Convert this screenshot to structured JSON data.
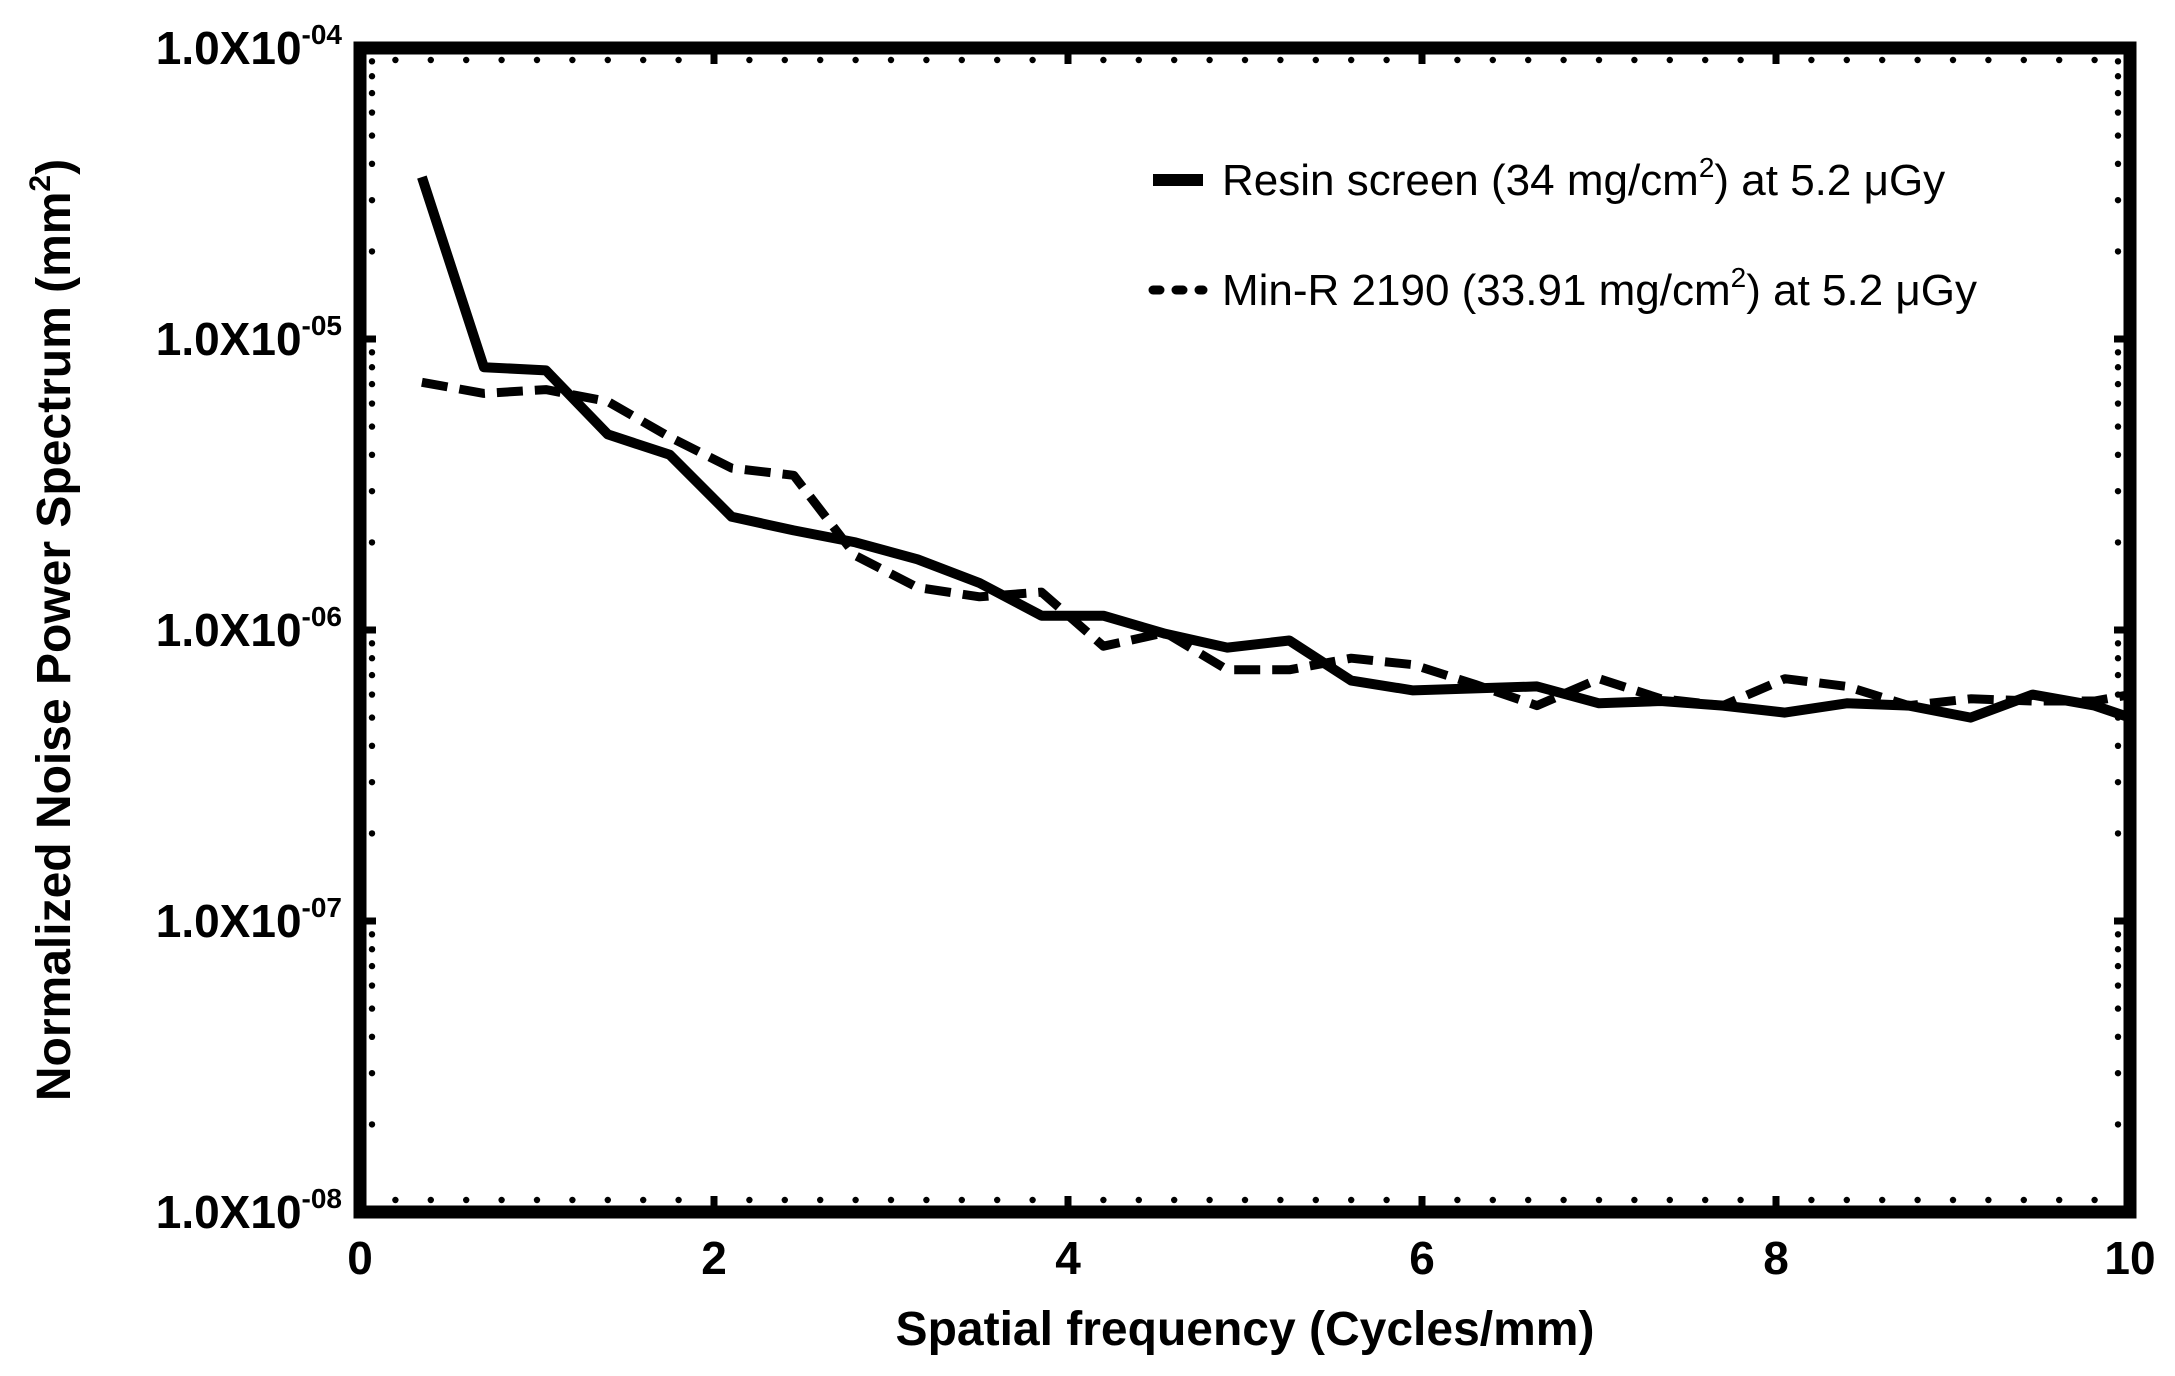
{
  "chart_data": {
    "type": "line",
    "title": "",
    "xlabel": "Spatial frequency (Cycles/mm)",
    "ylabel": {
      "main": "Normalized Noise Power Spectrum (mm",
      "sup": "2",
      "tail": ")"
    },
    "xlim": [
      0,
      10
    ],
    "ylim": [
      1e-08,
      0.0001
    ],
    "yscale": "log",
    "x_ticks": [
      "0",
      "2",
      "4",
      "6",
      "8",
      "10"
    ],
    "y_ticks": [
      {
        "value": 1e-08,
        "base": "1.0X10",
        "exp": "-08"
      },
      {
        "value": 1e-07,
        "base": "1.0X10",
        "exp": "-07"
      },
      {
        "value": 1e-06,
        "base": "1.0X10",
        "exp": "-06"
      },
      {
        "value": 1e-05,
        "base": "1.0X10",
        "exp": "-05"
      },
      {
        "value": 0.0001,
        "base": "1.0X10",
        "exp": "-04"
      }
    ],
    "grid": false,
    "legend_position": "top-right",
    "series": [
      {
        "name": "Resin screen (34 mg/cm2) at 5.2 μGy",
        "legend": {
          "pre": "Resin screen (34 mg/cm",
          "sup": "2",
          "post": ") at 5.2 μGy"
        },
        "style": "solid",
        "color": "#000000",
        "x": [
          0.35,
          0.7,
          1.05,
          1.4,
          1.75,
          2.1,
          2.45,
          2.8,
          3.15,
          3.5,
          3.85,
          4.2,
          4.55,
          4.9,
          5.25,
          5.6,
          5.95,
          6.3,
          6.65,
          7.0,
          7.35,
          7.7,
          8.05,
          8.4,
          8.75,
          9.1,
          9.45,
          9.8,
          10.0
        ],
        "y": [
          3.6e-05,
          8e-06,
          7.8e-06,
          4.7e-06,
          4e-06,
          2.45e-06,
          2.2e-06,
          2e-06,
          1.75e-06,
          1.45e-06,
          1.12e-06,
          1.12e-06,
          9.7e-07,
          8.7e-07,
          9.2e-07,
          6.7e-07,
          6.2e-07,
          6.3e-07,
          6.4e-07,
          5.6e-07,
          5.7e-07,
          5.5e-07,
          5.2e-07,
          5.6e-07,
          5.5e-07,
          5e-07,
          6e-07,
          5.5e-07,
          5e-07
        ]
      },
      {
        "name": "Min-R 2190 (33.91 mg/cm2) at 5.2 μGy",
        "legend": {
          "pre": "Min-R 2190 (33.91 mg/cm",
          "sup": "2",
          "post": ") at 5.2 μGy"
        },
        "style": "dashed",
        "color": "#000000",
        "x": [
          0.35,
          0.7,
          1.05,
          1.4,
          1.75,
          2.1,
          2.45,
          2.8,
          3.15,
          3.5,
          3.85,
          4.2,
          4.55,
          4.9,
          5.25,
          5.6,
          5.95,
          6.3,
          6.65,
          7.0,
          7.35,
          7.7,
          8.05,
          8.4,
          8.75,
          9.1,
          9.45,
          9.8,
          10.0
        ],
        "y": [
          7.1e-06,
          6.5e-06,
          6.7e-06,
          6.1e-06,
          4.6e-06,
          3.6e-06,
          3.4e-06,
          1.8e-06,
          1.4e-06,
          1.3e-06,
          1.35e-06,
          8.8e-07,
          9.8e-07,
          7.3e-07,
          7.3e-07,
          8e-07,
          7.6e-07,
          6.5e-07,
          5.5e-07,
          6.8e-07,
          5.8e-07,
          5.5e-07,
          6.8e-07,
          6.4e-07,
          5.5e-07,
          5.8e-07,
          5.7e-07,
          5.7e-07,
          6e-07
        ]
      }
    ]
  }
}
